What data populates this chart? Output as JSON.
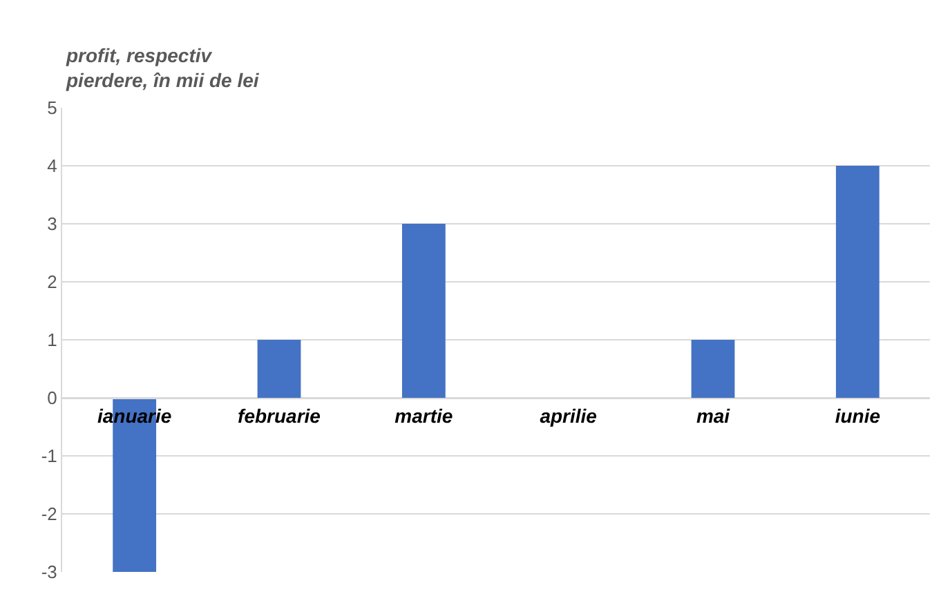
{
  "chart_data": {
    "type": "bar",
    "ylabel": "profit, respectiv\npierdere, în mii de lei",
    "categories": [
      "ianuarie",
      "februarie",
      "martie",
      "aprilie",
      "mai",
      "iunie"
    ],
    "values": [
      -3,
      1,
      3,
      0,
      1,
      4
    ],
    "color": "#4472c4",
    "ylim": [
      -3,
      5
    ],
    "yticks": [
      -3,
      -2,
      -1,
      0,
      1,
      2,
      3,
      4,
      5
    ],
    "grid": "y"
  }
}
